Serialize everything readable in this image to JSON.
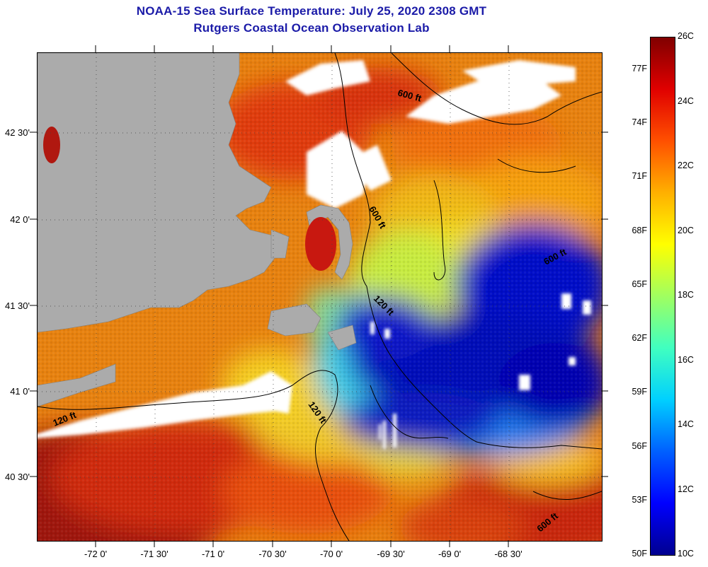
{
  "header": {
    "title": "NOAA-15 Sea Surface Temperature:  July 25, 2020 2308 GMT",
    "subtitle": "Rutgers Coastal Ocean Observation Lab"
  },
  "map": {
    "latitude_labels": [
      "42 30'",
      "42 0'",
      "41 30'",
      "41 0'",
      "40 30'"
    ],
    "longitude_labels": [
      "-72 0'",
      "-71 30'",
      "-71 0'",
      "-70 30'",
      "-70 0'",
      "-69 30'",
      "-69 0'",
      "-68 30'"
    ],
    "depth_contour_labels": [
      "600 ft",
      "600 ft",
      "600 ft",
      "120 ft",
      "120 ft",
      "120 ft",
      "600 ft"
    ],
    "colors": {
      "land": "#ababab",
      "cloud": "#ffffff",
      "warm": "#d42a10",
      "mid": "#f5e51e",
      "cool": "#0a2ad8"
    }
  },
  "colorbar": {
    "fahrenheit_labels": [
      "77F",
      "74F",
      "71F",
      "68F",
      "65F",
      "62F",
      "59F",
      "56F",
      "53F",
      "50F"
    ],
    "celsius_labels": [
      "26C",
      "24C",
      "22C",
      "20C",
      "18C",
      "16C",
      "14C",
      "12C",
      "10C"
    ],
    "celsius_min": 10,
    "celsius_max": 26,
    "fahrenheit_min": 50,
    "fahrenheit_max": 78.8,
    "gradient_stops": [
      "#000090",
      "#0000ff",
      "#0060ff",
      "#00d0ff",
      "#40ffc0",
      "#a0ff60",
      "#ffff00",
      "#ffb000",
      "#ff5000",
      "#e00000",
      "#800000"
    ]
  }
}
